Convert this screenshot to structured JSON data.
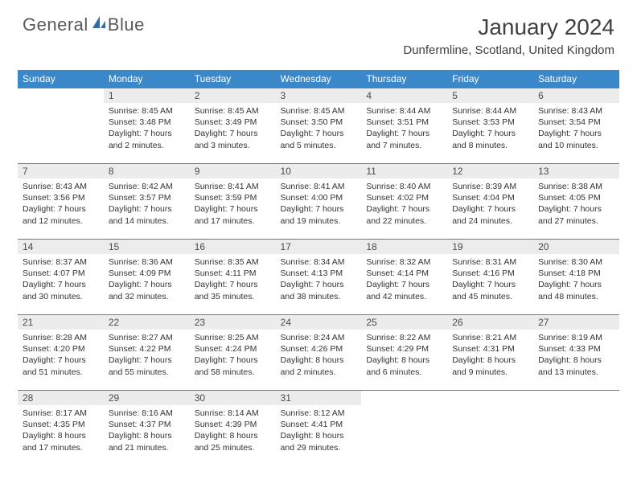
{
  "logo": {
    "part1": "General",
    "part2": "Blue"
  },
  "title": "January 2024",
  "location": "Dunfermline, Scotland, United Kingdom",
  "colors": {
    "header_bg": "#3a87c9",
    "header_text": "#ffffff",
    "daynum_bg": "#ececec",
    "text": "#333333",
    "logo_gray": "#595959",
    "logo_blue": "#2f6fa8",
    "border": "#3a87c9",
    "page_bg": "#ffffff"
  },
  "fonts": {
    "month_title_size": 28,
    "location_size": 15,
    "weekday_size": 12,
    "daynum_size": 12,
    "body_size": 10.5
  },
  "weekdays": [
    "Sunday",
    "Monday",
    "Tuesday",
    "Wednesday",
    "Thursday",
    "Friday",
    "Saturday"
  ],
  "weeks": [
    [
      null,
      {
        "n": "1",
        "sr": "8:45 AM",
        "ss": "3:48 PM",
        "dl": "7 hours and 2 minutes."
      },
      {
        "n": "2",
        "sr": "8:45 AM",
        "ss": "3:49 PM",
        "dl": "7 hours and 3 minutes."
      },
      {
        "n": "3",
        "sr": "8:45 AM",
        "ss": "3:50 PM",
        "dl": "7 hours and 5 minutes."
      },
      {
        "n": "4",
        "sr": "8:44 AM",
        "ss": "3:51 PM",
        "dl": "7 hours and 7 minutes."
      },
      {
        "n": "5",
        "sr": "8:44 AM",
        "ss": "3:53 PM",
        "dl": "7 hours and 8 minutes."
      },
      {
        "n": "6",
        "sr": "8:43 AM",
        "ss": "3:54 PM",
        "dl": "7 hours and 10 minutes."
      }
    ],
    [
      {
        "n": "7",
        "sr": "8:43 AM",
        "ss": "3:56 PM",
        "dl": "7 hours and 12 minutes."
      },
      {
        "n": "8",
        "sr": "8:42 AM",
        "ss": "3:57 PM",
        "dl": "7 hours and 14 minutes."
      },
      {
        "n": "9",
        "sr": "8:41 AM",
        "ss": "3:59 PM",
        "dl": "7 hours and 17 minutes."
      },
      {
        "n": "10",
        "sr": "8:41 AM",
        "ss": "4:00 PM",
        "dl": "7 hours and 19 minutes."
      },
      {
        "n": "11",
        "sr": "8:40 AM",
        "ss": "4:02 PM",
        "dl": "7 hours and 22 minutes."
      },
      {
        "n": "12",
        "sr": "8:39 AM",
        "ss": "4:04 PM",
        "dl": "7 hours and 24 minutes."
      },
      {
        "n": "13",
        "sr": "8:38 AM",
        "ss": "4:05 PM",
        "dl": "7 hours and 27 minutes."
      }
    ],
    [
      {
        "n": "14",
        "sr": "8:37 AM",
        "ss": "4:07 PM",
        "dl": "7 hours and 30 minutes."
      },
      {
        "n": "15",
        "sr": "8:36 AM",
        "ss": "4:09 PM",
        "dl": "7 hours and 32 minutes."
      },
      {
        "n": "16",
        "sr": "8:35 AM",
        "ss": "4:11 PM",
        "dl": "7 hours and 35 minutes."
      },
      {
        "n": "17",
        "sr": "8:34 AM",
        "ss": "4:13 PM",
        "dl": "7 hours and 38 minutes."
      },
      {
        "n": "18",
        "sr": "8:32 AM",
        "ss": "4:14 PM",
        "dl": "7 hours and 42 minutes."
      },
      {
        "n": "19",
        "sr": "8:31 AM",
        "ss": "4:16 PM",
        "dl": "7 hours and 45 minutes."
      },
      {
        "n": "20",
        "sr": "8:30 AM",
        "ss": "4:18 PM",
        "dl": "7 hours and 48 minutes."
      }
    ],
    [
      {
        "n": "21",
        "sr": "8:28 AM",
        "ss": "4:20 PM",
        "dl": "7 hours and 51 minutes."
      },
      {
        "n": "22",
        "sr": "8:27 AM",
        "ss": "4:22 PM",
        "dl": "7 hours and 55 minutes."
      },
      {
        "n": "23",
        "sr": "8:25 AM",
        "ss": "4:24 PM",
        "dl": "7 hours and 58 minutes."
      },
      {
        "n": "24",
        "sr": "8:24 AM",
        "ss": "4:26 PM",
        "dl": "8 hours and 2 minutes."
      },
      {
        "n": "25",
        "sr": "8:22 AM",
        "ss": "4:29 PM",
        "dl": "8 hours and 6 minutes."
      },
      {
        "n": "26",
        "sr": "8:21 AM",
        "ss": "4:31 PM",
        "dl": "8 hours and 9 minutes."
      },
      {
        "n": "27",
        "sr": "8:19 AM",
        "ss": "4:33 PM",
        "dl": "8 hours and 13 minutes."
      }
    ],
    [
      {
        "n": "28",
        "sr": "8:17 AM",
        "ss": "4:35 PM",
        "dl": "8 hours and 17 minutes."
      },
      {
        "n": "29",
        "sr": "8:16 AM",
        "ss": "4:37 PM",
        "dl": "8 hours and 21 minutes."
      },
      {
        "n": "30",
        "sr": "8:14 AM",
        "ss": "4:39 PM",
        "dl": "8 hours and 25 minutes."
      },
      {
        "n": "31",
        "sr": "8:12 AM",
        "ss": "4:41 PM",
        "dl": "8 hours and 29 minutes."
      },
      null,
      null,
      null
    ]
  ],
  "labels": {
    "sunrise": "Sunrise:",
    "sunset": "Sunset:",
    "daylight": "Daylight:"
  }
}
